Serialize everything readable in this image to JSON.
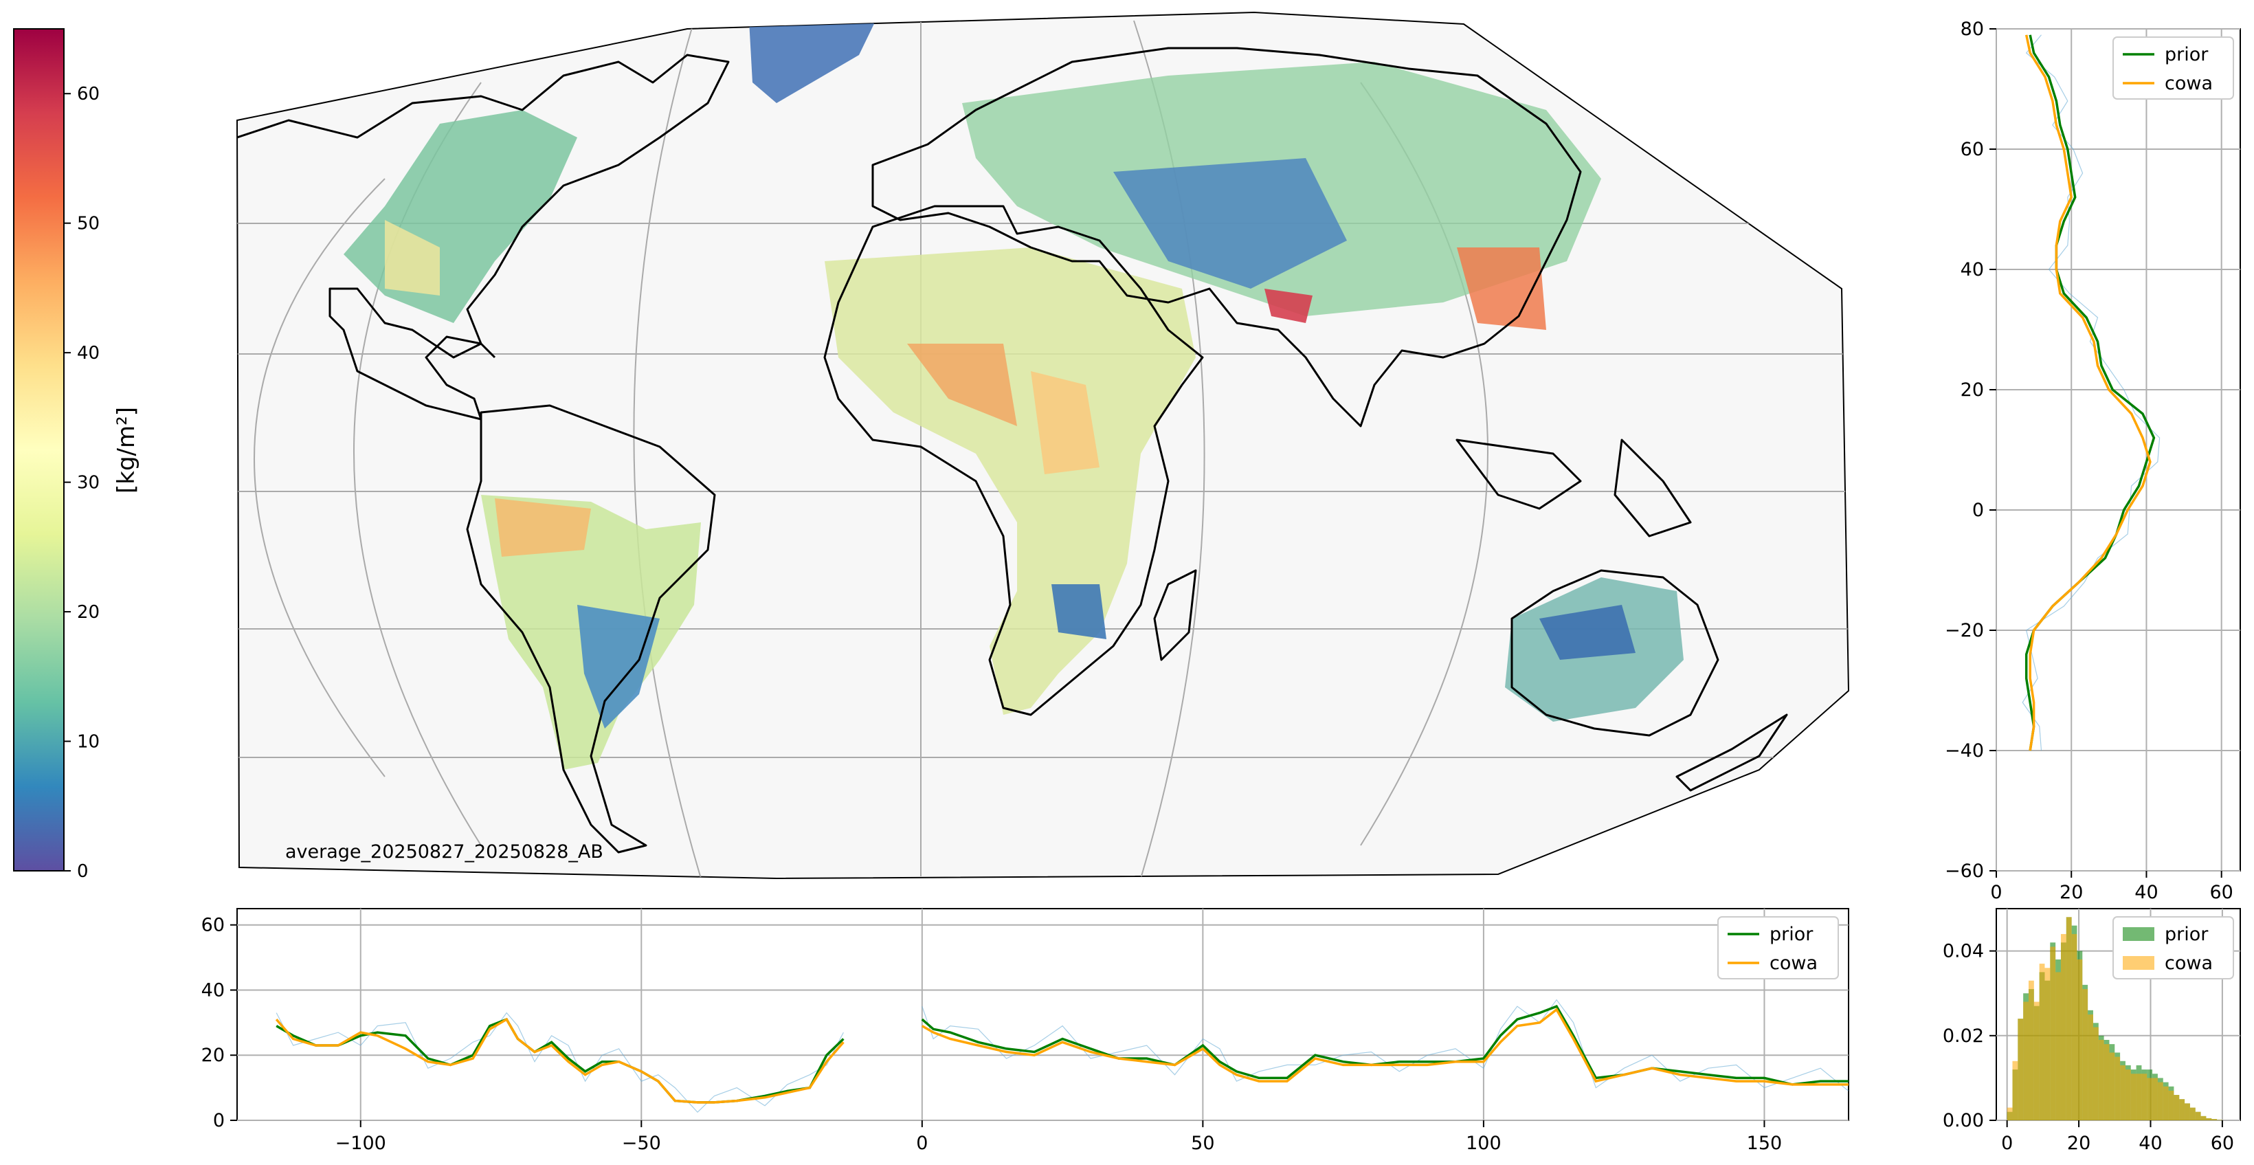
{
  "map_label": "average_20250827_20250828_AB",
  "colorbar": {
    "label": "[kg/m²]",
    "min": 0,
    "max": 65,
    "ticks": [
      "0",
      "10",
      "20",
      "30",
      "40",
      "50",
      "60"
    ],
    "colors": [
      "#5e4fa2",
      "#3288bd",
      "#66c2a5",
      "#abdda4",
      "#e6f598",
      "#ffffbf",
      "#fee08b",
      "#fdae61",
      "#f46d43",
      "#d53e4f",
      "#9e0142"
    ]
  },
  "series_colors": {
    "prior": "#008000",
    "cowa": "#ffa500",
    "obs": "#6baed6"
  },
  "chart_data": [
    {
      "type": "line",
      "name": "longitude profile",
      "xlim": [
        -122,
        165
      ],
      "ylim": [
        0,
        65
      ],
      "xticks": [
        "-100",
        "-50",
        "0",
        "50",
        "100",
        "150"
      ],
      "yticks": [
        "0",
        "20",
        "40",
        "60"
      ],
      "grid": true,
      "legend": "top-right",
      "series": [
        {
          "name": "prior",
          "x": [
            -115,
            -112,
            -108,
            -104,
            -100,
            -97,
            -92,
            -88,
            -84,
            -80,
            -77,
            -74,
            -72,
            -69,
            -66,
            -63,
            -60,
            -57,
            -54,
            -50,
            -47,
            -44,
            -40,
            -37,
            -33,
            -28,
            -24,
            -20,
            -17,
            -14
          ],
          "y": [
            29,
            26,
            23,
            23,
            26,
            27,
            26,
            19,
            17,
            20,
            29,
            31,
            25,
            21,
            24,
            19,
            15,
            18,
            18,
            15,
            12,
            6,
            5.5,
            5.5,
            6,
            7.5,
            9,
            10,
            20,
            25
          ]
        },
        {
          "name": "cowa",
          "x": [
            -115,
            -112,
            -108,
            -104,
            -100,
            -97,
            -92,
            -88,
            -84,
            -80,
            -77,
            -74,
            -72,
            -69,
            -66,
            -63,
            -60,
            -57,
            -54,
            -50,
            -47,
            -44,
            -40,
            -37,
            -33,
            -28,
            -24,
            -20,
            -17,
            -14
          ],
          "y": [
            31,
            25,
            23,
            23,
            27,
            26,
            22,
            18,
            17,
            19,
            28,
            31,
            25,
            21,
            23,
            18,
            14,
            17,
            18,
            15,
            12,
            6,
            5.5,
            5.5,
            6,
            7,
            8.5,
            10,
            18,
            24
          ]
        },
        {
          "name": "prior",
          "x": [
            0,
            2,
            5,
            10,
            15,
            20,
            25,
            30,
            35,
            40,
            45,
            50,
            53,
            56,
            60,
            65,
            70,
            75,
            80,
            85,
            90,
            95,
            100,
            103,
            106,
            110,
            113,
            116,
            120,
            125,
            130,
            135,
            140,
            145,
            150,
            155,
            160,
            165
          ],
          "y": [
            31,
            28,
            27,
            24,
            22,
            21,
            25,
            22,
            19,
            19,
            17,
            23,
            18,
            15,
            13,
            13,
            20,
            18,
            17,
            18,
            18,
            18,
            19,
            26,
            31,
            33,
            35,
            26,
            13,
            14,
            16,
            15,
            14,
            13,
            13,
            11,
            12,
            12
          ]
        },
        {
          "name": "cowa",
          "x": [
            0,
            2,
            5,
            10,
            15,
            20,
            25,
            30,
            35,
            40,
            45,
            50,
            53,
            56,
            60,
            65,
            70,
            75,
            80,
            85,
            90,
            95,
            100,
            103,
            106,
            110,
            113,
            116,
            120,
            125,
            130,
            135,
            140,
            145,
            150,
            155,
            160,
            165
          ],
          "y": [
            29,
            27,
            25,
            23,
            21,
            20,
            24,
            21,
            19,
            18,
            17,
            22,
            17,
            14,
            12,
            12,
            19,
            17,
            17,
            17,
            17,
            18,
            18,
            24,
            29,
            30,
            34,
            25,
            12,
            14,
            16,
            14,
            13,
            12,
            12,
            11,
            11,
            11
          ]
        }
      ]
    },
    {
      "type": "line",
      "name": "latitude profile",
      "xlim": [
        0,
        65
      ],
      "ylim": [
        -60,
        80
      ],
      "xticks": [
        "0",
        "20",
        "40",
        "60"
      ],
      "yticks": [
        "−60",
        "−40",
        "−20",
        "0",
        "20",
        "40",
        "60",
        "80"
      ],
      "grid": true,
      "legend": "top-right",
      "series": [
        {
          "name": "prior",
          "y": [
            79,
            76,
            72,
            68,
            64,
            60,
            56,
            52,
            48,
            44,
            40,
            36,
            32,
            28,
            24,
            20,
            16,
            12,
            8,
            4,
            0,
            -4,
            -8,
            -12,
            -16,
            -20,
            -24,
            -28,
            -32,
            -36,
            -40
          ],
          "x": [
            9,
            10,
            14,
            16,
            17,
            19,
            20,
            21,
            18,
            16,
            16,
            18,
            24,
            27,
            28,
            31,
            39,
            42,
            40,
            38,
            34,
            32,
            29,
            22,
            15,
            10,
            8,
            8,
            9,
            10,
            9
          ]
        },
        {
          "name": "cowa",
          "y": [
            79,
            76,
            72,
            68,
            64,
            60,
            56,
            52,
            48,
            44,
            40,
            36,
            32,
            28,
            24,
            20,
            16,
            12,
            8,
            4,
            0,
            -4,
            -8,
            -12,
            -16,
            -20,
            -24,
            -28,
            -32,
            -36,
            -40
          ],
          "x": [
            8,
            9,
            13,
            15,
            16,
            18,
            19,
            20,
            17,
            16,
            16,
            17,
            23,
            26,
            27,
            30,
            36,
            39,
            41,
            39,
            35,
            32,
            28,
            22,
            15,
            10,
            9,
            9,
            10,
            10,
            9
          ]
        }
      ]
    },
    {
      "type": "bar",
      "name": "histogram",
      "xlim": [
        -3,
        65
      ],
      "ylim": [
        0,
        0.05
      ],
      "xticks": [
        "0",
        "20",
        "40",
        "60"
      ],
      "yticks": [
        "0.00",
        "0.02",
        "0.04"
      ],
      "grid": true,
      "legend": "top-right",
      "bin_width": 1.5,
      "bin_start": 0,
      "series": [
        {
          "name": "prior",
          "values": [
            0.002,
            0.012,
            0.024,
            0.03,
            0.031,
            0.027,
            0.035,
            0.033,
            0.042,
            0.038,
            0.042,
            0.048,
            0.046,
            0.04,
            0.032,
            0.026,
            0.023,
            0.02,
            0.019,
            0.018,
            0.016,
            0.014,
            0.013,
            0.012,
            0.013,
            0.012,
            0.012,
            0.011,
            0.01,
            0.009,
            0.008,
            0.006,
            0.005,
            0.004,
            0.003,
            0.002,
            0.001,
            0.0005,
            0.0003,
            0.0001
          ]
        },
        {
          "name": "cowa",
          "values": [
            0.003,
            0.014,
            0.024,
            0.028,
            0.033,
            0.028,
            0.037,
            0.036,
            0.041,
            0.035,
            0.044,
            0.048,
            0.044,
            0.038,
            0.031,
            0.025,
            0.022,
            0.019,
            0.018,
            0.016,
            0.015,
            0.013,
            0.012,
            0.011,
            0.011,
            0.011,
            0.01,
            0.01,
            0.009,
            0.008,
            0.007,
            0.006,
            0.005,
            0.004,
            0.003,
            0.002,
            0.001,
            0.0005,
            0.0003,
            0.0001
          ]
        }
      ]
    }
  ]
}
